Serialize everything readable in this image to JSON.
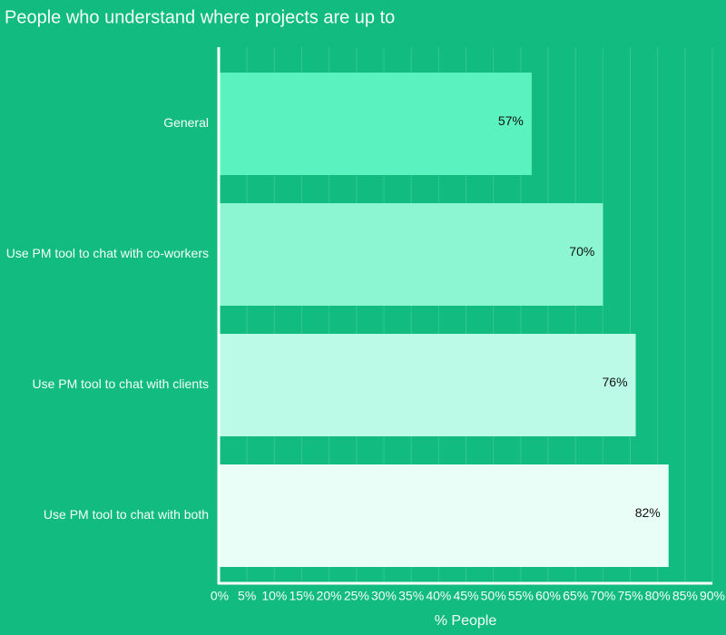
{
  "chart_data": {
    "type": "bar",
    "orientation": "horizontal",
    "title": "People who understand where projects are up to",
    "xlabel": "% People",
    "categories": [
      "General",
      "Use PM tool to chat with co-workers",
      "Use PM tool to chat with clients",
      "Use PM tool to chat with both"
    ],
    "values": [
      57,
      70,
      76,
      82
    ],
    "value_labels": [
      "57%",
      "70%",
      "76%",
      "82%"
    ],
    "colors": [
      "#5af2bf",
      "#8cf6d3",
      "#bbfae6",
      "#eafef8"
    ],
    "xlim": [
      0,
      90
    ],
    "xticks": [
      {
        "value": 0,
        "label": "0%"
      },
      {
        "value": 5,
        "label": "5%"
      },
      {
        "value": 10,
        "label": "10%"
      },
      {
        "value": 15,
        "label": "15%"
      },
      {
        "value": 20,
        "label": "20%"
      },
      {
        "value": 25,
        "label": "25%"
      },
      {
        "value": 30,
        "label": "30%"
      },
      {
        "value": 35,
        "label": "35%"
      },
      {
        "value": 40,
        "label": "40%"
      },
      {
        "value": 45,
        "label": "45%"
      },
      {
        "value": 50,
        "label": "50%"
      },
      {
        "value": 55,
        "label": "55%"
      },
      {
        "value": 60,
        "label": "60%"
      },
      {
        "value": 65,
        "label": "65%"
      },
      {
        "value": 70,
        "label": "70%"
      },
      {
        "value": 75,
        "label": "75%"
      },
      {
        "value": 80,
        "label": "80%"
      },
      {
        "value": 85,
        "label": "85%"
      },
      {
        "value": 90,
        "label": "90%"
      }
    ],
    "grid": true
  }
}
